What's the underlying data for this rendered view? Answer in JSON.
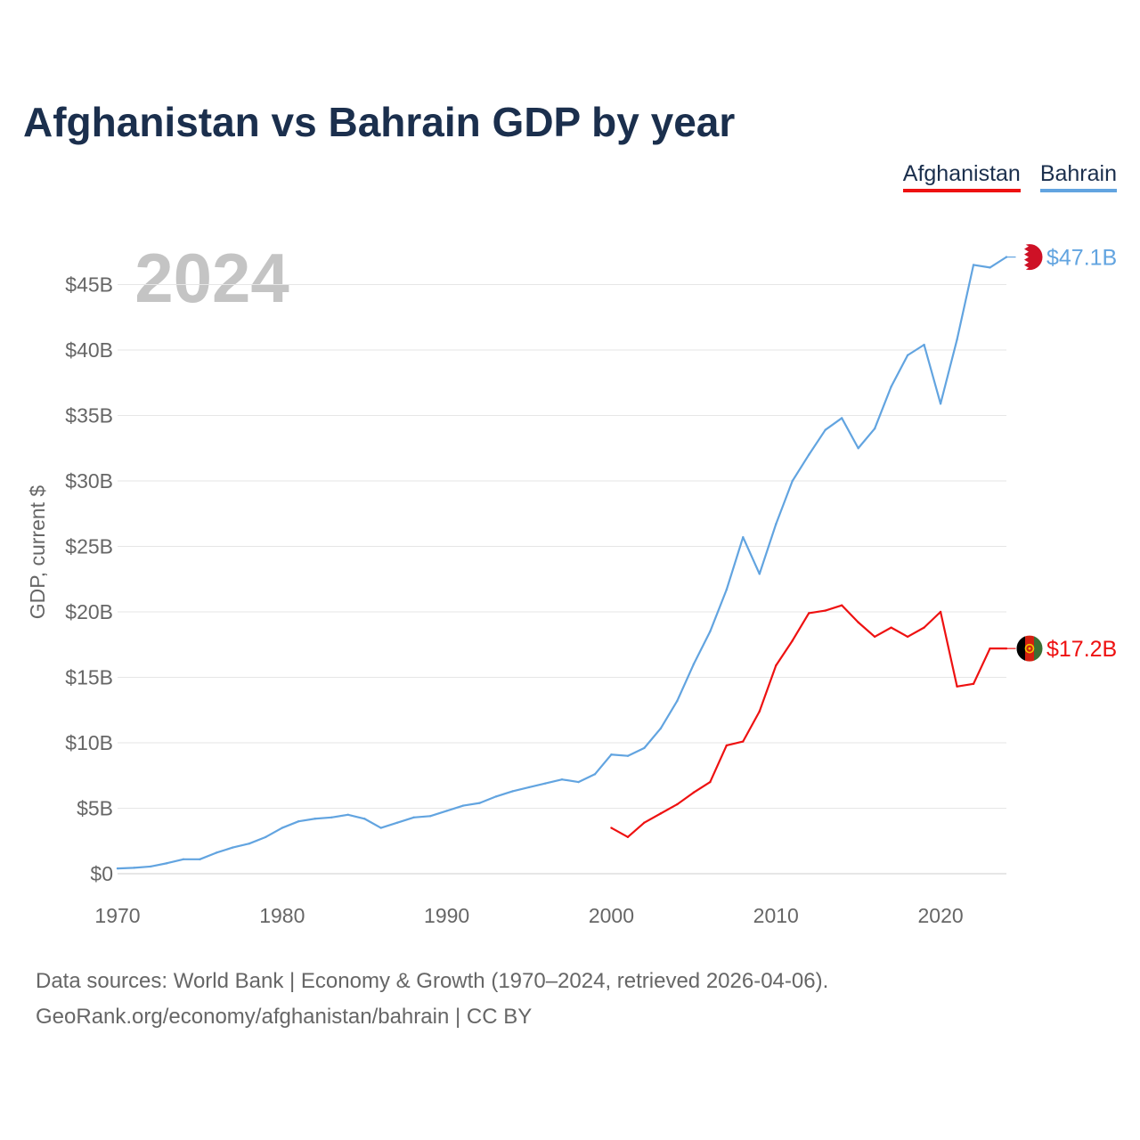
{
  "colors": {
    "afghanistan": "#ee1111",
    "bahrain": "#62a4e0",
    "title": "#1b2f4d",
    "axis_text": "#666666",
    "grid": "#e6e6e6",
    "year_watermark": "#c4c4c4"
  },
  "legend": {
    "afghanistan": "Afghanistan",
    "bahrain": "Bahrain"
  },
  "footer": {
    "line1": "Data sources: World Bank | Economy & Growth (1970–2024, retrieved 2026-04-06).",
    "line2": "GeoRank.org/economy/afghanistan/bahrain | CC BY"
  },
  "chart_data": {
    "type": "line",
    "title": "Afghanistan vs Bahrain GDP by year",
    "ylabel": "GDP, current $",
    "xlabel": "",
    "year_label": "2024",
    "xlim": [
      1970,
      2024
    ],
    "ylim": [
      0,
      48
    ],
    "y_ticks": [
      0,
      5,
      10,
      15,
      20,
      25,
      30,
      35,
      40,
      45
    ],
    "y_tick_labels": [
      "$0",
      "$5B",
      "$10B",
      "$15B",
      "$20B",
      "$25B",
      "$30B",
      "$35B",
      "$40B",
      "$45B"
    ],
    "x_ticks": [
      1970,
      1980,
      1990,
      2000,
      2010,
      2020
    ],
    "x_tick_labels": [
      "1970",
      "1980",
      "1990",
      "2000",
      "2010",
      "2020"
    ],
    "grid": true,
    "legend_position": "top-right",
    "series": [
      {
        "name": "Afghanistan",
        "key": "afghanistan",
        "end_label": "$17.2B",
        "flag": "afghanistan-flag",
        "points": [
          [
            2000,
            3.5
          ],
          [
            2001,
            2.8
          ],
          [
            2002,
            3.9
          ],
          [
            2003,
            4.6
          ],
          [
            2004,
            5.3
          ],
          [
            2005,
            6.2
          ],
          [
            2006,
            7.0
          ],
          [
            2007,
            9.8
          ],
          [
            2008,
            10.1
          ],
          [
            2009,
            12.4
          ],
          [
            2010,
            15.9
          ],
          [
            2011,
            17.8
          ],
          [
            2012,
            19.9
          ],
          [
            2013,
            20.1
          ],
          [
            2014,
            20.5
          ],
          [
            2015,
            19.2
          ],
          [
            2016,
            18.1
          ],
          [
            2017,
            18.8
          ],
          [
            2018,
            18.1
          ],
          [
            2019,
            18.8
          ],
          [
            2020,
            20.0
          ],
          [
            2021,
            14.3
          ],
          [
            2022,
            14.5
          ],
          [
            2023,
            17.2
          ],
          [
            2024,
            17.2
          ]
        ]
      },
      {
        "name": "Bahrain",
        "key": "bahrain",
        "end_label": "$47.1B",
        "flag": "bahrain-flag",
        "points": [
          [
            1970,
            0.4
          ],
          [
            1971,
            0.45
          ],
          [
            1972,
            0.55
          ],
          [
            1973,
            0.8
          ],
          [
            1974,
            1.1
          ],
          [
            1975,
            1.1
          ],
          [
            1976,
            1.6
          ],
          [
            1977,
            2.0
          ],
          [
            1978,
            2.3
          ],
          [
            1979,
            2.8
          ],
          [
            1980,
            3.5
          ],
          [
            1981,
            4.0
          ],
          [
            1982,
            4.2
          ],
          [
            1983,
            4.3
          ],
          [
            1984,
            4.5
          ],
          [
            1985,
            4.2
          ],
          [
            1986,
            3.5
          ],
          [
            1987,
            3.9
          ],
          [
            1988,
            4.3
          ],
          [
            1989,
            4.4
          ],
          [
            1990,
            4.8
          ],
          [
            1991,
            5.2
          ],
          [
            1992,
            5.4
          ],
          [
            1993,
            5.9
          ],
          [
            1994,
            6.3
          ],
          [
            1995,
            6.6
          ],
          [
            1996,
            6.9
          ],
          [
            1997,
            7.2
          ],
          [
            1998,
            7.0
          ],
          [
            1999,
            7.6
          ],
          [
            2000,
            9.1
          ],
          [
            2001,
            9.0
          ],
          [
            2002,
            9.6
          ],
          [
            2003,
            11.1
          ],
          [
            2004,
            13.2
          ],
          [
            2005,
            16.0
          ],
          [
            2006,
            18.5
          ],
          [
            2007,
            21.7
          ],
          [
            2008,
            25.7
          ],
          [
            2009,
            22.9
          ],
          [
            2010,
            26.7
          ],
          [
            2011,
            30.0
          ],
          [
            2012,
            32.0
          ],
          [
            2013,
            33.9
          ],
          [
            2014,
            34.8
          ],
          [
            2015,
            32.5
          ],
          [
            2016,
            34.0
          ],
          [
            2017,
            37.2
          ],
          [
            2018,
            39.6
          ],
          [
            2019,
            40.4
          ],
          [
            2020,
            35.9
          ],
          [
            2021,
            40.8
          ],
          [
            2022,
            46.5
          ],
          [
            2023,
            46.3
          ],
          [
            2024,
            47.1
          ]
        ]
      }
    ]
  }
}
